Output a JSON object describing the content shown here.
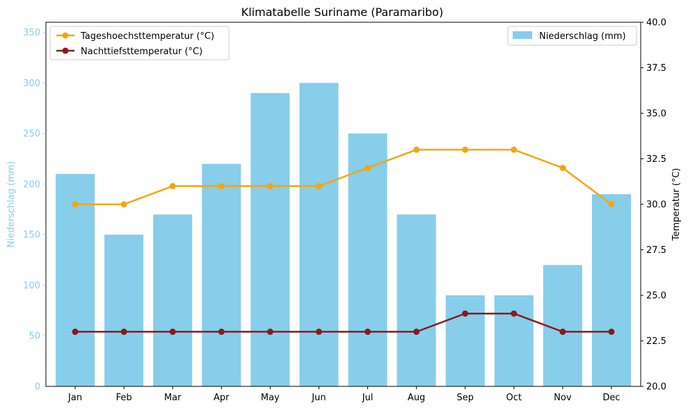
{
  "chart_data": {
    "type": "bar",
    "title": "Klimatabelle Suriname (Paramaribo)",
    "categories": [
      "Jan",
      "Feb",
      "Mar",
      "Apr",
      "May",
      "Jun",
      "Jul",
      "Aug",
      "Sep",
      "Oct",
      "Nov",
      "Dec"
    ],
    "bar_series": {
      "name": "Niederschlag (mm)",
      "values": [
        210,
        150,
        170,
        220,
        290,
        300,
        250,
        170,
        90,
        90,
        120,
        190
      ],
      "color": "#87CEEB"
    },
    "line_series": [
      {
        "name": "Tageshoechsttemperatur (°C)",
        "values": [
          30,
          30,
          31,
          31,
          31,
          31,
          32,
          33,
          33,
          33,
          32,
          30
        ],
        "color": "#F5A511"
      },
      {
        "name": "Nachttiefsttemperatur (°C)",
        "values": [
          23,
          23,
          23,
          23,
          23,
          23,
          23,
          23,
          24,
          24,
          23,
          23
        ],
        "color": "#8B1A1A"
      }
    ],
    "ylabel_left": "Niederschlag (mm)",
    "ylabel_right": "Temperatur (°C)",
    "ylim_left": [
      0,
      360
    ],
    "ylim_right": [
      20,
      40
    ],
    "yticks_left": [
      "0",
      "50",
      "100",
      "150",
      "200",
      "250",
      "300",
      "350"
    ],
    "yticks_right": [
      "20.0",
      "22.5",
      "25.0",
      "27.5",
      "30.0",
      "32.5",
      "35.0",
      "37.5",
      "40.0"
    ],
    "legend_lines_position": "upper left",
    "legend_bars_position": "upper right",
    "grid": false
  }
}
